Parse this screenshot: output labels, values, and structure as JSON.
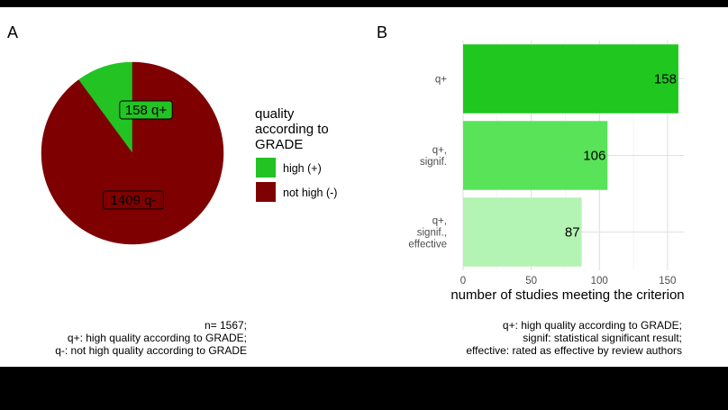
{
  "panels": {
    "a_label": "A",
    "b_label": "B"
  },
  "chart_data": [
    {
      "type": "pie",
      "panel": "A",
      "categories": [
        "high (+)",
        "not high (-)"
      ],
      "values": [
        158,
        1409
      ],
      "colors": [
        "#22c322",
        "#7f0000"
      ],
      "slice_labels": [
        "158 q+",
        "1409 q-"
      ],
      "legend": {
        "title_lines": [
          "quality",
          "according to",
          "GRADE"
        ],
        "placement": "right"
      },
      "caption_lines": [
        "n= 1567;",
        "q+: high quality according to GRADE;",
        "q-: not high quality according to GRADE"
      ]
    },
    {
      "type": "bar",
      "orientation": "horizontal",
      "panel": "B",
      "categories": [
        [
          "q+"
        ],
        [
          "q+,",
          "signif."
        ],
        [
          "q+,",
          "signif.,",
          "effective"
        ]
      ],
      "values": [
        158,
        106,
        87
      ],
      "colors": [
        "#1fc71f",
        "#59e359",
        "#b3f3b3"
      ],
      "xlabel": "number of studies meeting the criterion",
      "ylabel": "",
      "xlim": [
        0,
        162
      ],
      "xticks": [
        0,
        50,
        100,
        150
      ],
      "grid": true,
      "caption_lines": [
        "q+: high quality according to GRADE;",
        "signif: statistical significant result;",
        "effective: rated as effective by review authors"
      ]
    }
  ]
}
